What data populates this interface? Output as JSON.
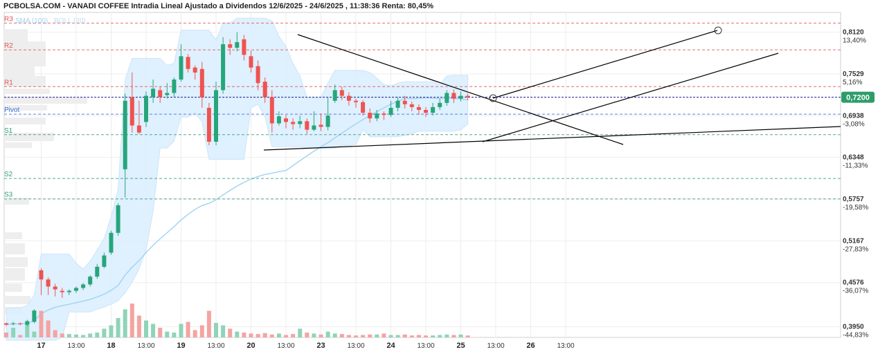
{
  "title": "PCBOLSA.COM - VANADI COFFEE Intradia Lineal Ajustado a Dividendos 12/6/2025 - 24/6/2025 , 11:38:36 Renta: 80,45%",
  "legend": {
    "sma": "SMA (100)",
    "boll": "BOLL (20)"
  },
  "colors": {
    "up": "#26a67a",
    "down": "#ef5350",
    "volume_up": "#8fd4b8",
    "volume_down": "#f5a3a1",
    "resistance": "#e05555",
    "pivot": "#3b6fd8",
    "support": "#2e9c7a",
    "band": "#dcefff",
    "sma": "#9fd3f0",
    "price_line": "#1c1c8c",
    "price_badge": "#2e9c6a"
  },
  "chart_data": {
    "type": "candlestick",
    "y_range": [
      0.38,
      0.84
    ],
    "levels": [
      {
        "name": "R3",
        "value": 0.825,
        "kind": "resistance"
      },
      {
        "name": "R2",
        "value": 0.787,
        "kind": "resistance"
      },
      {
        "name": "R1",
        "value": 0.735,
        "kind": "resistance"
      },
      {
        "name": "Pivot",
        "value": 0.696,
        "kind": "pivot"
      },
      {
        "name": "S1",
        "value": 0.667,
        "kind": "support"
      },
      {
        "name": "S2",
        "value": 0.605,
        "kind": "support"
      },
      {
        "name": "S3",
        "value": 0.576,
        "kind": "support"
      }
    ],
    "y_ticks": [
      {
        "value": "0,8120",
        "pct": "13,40%"
      },
      {
        "value": "0,7529",
        "pct": "5,16%"
      },
      {
        "value": "0,6938",
        "pct": "-3,08%"
      },
      {
        "value": "0,6348",
        "pct": "-11,33%"
      },
      {
        "value": "0,5757",
        "pct": "-19,58%"
      },
      {
        "value": "0,5167",
        "pct": "-27,83%"
      },
      {
        "value": "0,4576",
        "pct": "-36,07%"
      },
      {
        "value": "0,3950",
        "pct": "-44,83%"
      }
    ],
    "current_price": "0,7200",
    "x_ticks": [
      {
        "label": "17",
        "bold": true,
        "i": 5
      },
      {
        "label": "13:00",
        "bold": false,
        "i": 10
      },
      {
        "label": "18",
        "bold": true,
        "i": 15
      },
      {
        "label": "13:00",
        "bold": false,
        "i": 20
      },
      {
        "label": "19",
        "bold": true,
        "i": 25
      },
      {
        "label": "13:00",
        "bold": false,
        "i": 30
      },
      {
        "label": "20",
        "bold": true,
        "i": 35
      },
      {
        "label": "13:00",
        "bold": false,
        "i": 40
      },
      {
        "label": "23",
        "bold": true,
        "i": 45
      },
      {
        "label": "13:00",
        "bold": false,
        "i": 50
      },
      {
        "label": "24",
        "bold": true,
        "i": 55
      },
      {
        "label": "13:00",
        "bold": false,
        "i": 60
      },
      {
        "label": "25",
        "bold": true,
        "i": 65
      },
      {
        "label": "13:00",
        "bold": false,
        "i": 70
      },
      {
        "label": "26",
        "bold": true,
        "i": 75
      },
      {
        "label": "13:00",
        "bold": false,
        "i": 80
      }
    ],
    "candles": [
      [
        0.4,
        0.398,
        0.401,
        0.396
      ],
      [
        0.399,
        0.4,
        0.402,
        0.397
      ],
      [
        0.4,
        0.399,
        0.401,
        0.397
      ],
      [
        0.398,
        0.403,
        0.405,
        0.396
      ],
      [
        0.402,
        0.418,
        0.42,
        0.4
      ],
      [
        0.475,
        0.462,
        0.478,
        0.44
      ],
      [
        0.462,
        0.452,
        0.465,
        0.44
      ],
      [
        0.452,
        0.448,
        0.456,
        0.438
      ],
      [
        0.446,
        0.444,
        0.45,
        0.436
      ],
      [
        0.444,
        0.446,
        0.448,
        0.44
      ],
      [
        0.446,
        0.45,
        0.452,
        0.443
      ],
      [
        0.45,
        0.455,
        0.457,
        0.447
      ],
      [
        0.455,
        0.466,
        0.468,
        0.452
      ],
      [
        0.466,
        0.48,
        0.484,
        0.463
      ],
      [
        0.48,
        0.496,
        0.5,
        0.478
      ],
      [
        0.5,
        0.528,
        0.531,
        0.497
      ],
      [
        0.528,
        0.567,
        0.57,
        0.524
      ],
      [
        0.618,
        0.715,
        0.725,
        0.578
      ],
      [
        0.72,
        0.68,
        0.755,
        0.67
      ],
      [
        0.68,
        0.67,
        0.715,
        0.668
      ],
      [
        0.685,
        0.722,
        0.728,
        0.678
      ],
      [
        0.72,
        0.732,
        0.745,
        0.712
      ],
      [
        0.73,
        0.72,
        0.735,
        0.712
      ],
      [
        0.723,
        0.726,
        0.74,
        0.718
      ],
      [
        0.726,
        0.745,
        0.748,
        0.72
      ],
      [
        0.745,
        0.778,
        0.795,
        0.742
      ],
      [
        0.777,
        0.76,
        0.781,
        0.755
      ],
      [
        0.762,
        0.755,
        0.765,
        0.745
      ],
      [
        0.76,
        0.72,
        0.77,
        0.705
      ],
      [
        0.705,
        0.657,
        0.712,
        0.652
      ],
      [
        0.657,
        0.73,
        0.742,
        0.652
      ],
      [
        0.73,
        0.795,
        0.805,
        0.725
      ],
      [
        0.795,
        0.79,
        0.802,
        0.78
      ],
      [
        0.79,
        0.798,
        0.812,
        0.785
      ],
      [
        0.802,
        0.78,
        0.808,
        0.772
      ],
      [
        0.778,
        0.762,
        0.786,
        0.755
      ],
      [
        0.764,
        0.74,
        0.772,
        0.73
      ],
      [
        0.742,
        0.72,
        0.748,
        0.712
      ],
      [
        0.72,
        0.683,
        0.73,
        0.67
      ],
      [
        0.683,
        0.693,
        0.7,
        0.68
      ],
      [
        0.69,
        0.685,
        0.695,
        0.676
      ],
      [
        0.685,
        0.682,
        0.69,
        0.674
      ],
      [
        0.682,
        0.686,
        0.694,
        0.676
      ],
      [
        0.686,
        0.674,
        0.69,
        0.668
      ],
      [
        0.674,
        0.68,
        0.7,
        0.672
      ],
      [
        0.681,
        0.678,
        0.697,
        0.672
      ],
      [
        0.678,
        0.694,
        0.72,
        0.673
      ],
      [
        0.715,
        0.73,
        0.738,
        0.712
      ],
      [
        0.73,
        0.722,
        0.735,
        0.716
      ],
      [
        0.722,
        0.715,
        0.727,
        0.708
      ],
      [
        0.715,
        0.713,
        0.718,
        0.705
      ],
      [
        0.713,
        0.698,
        0.716,
        0.694
      ],
      [
        0.698,
        0.69,
        0.704,
        0.684
      ],
      [
        0.69,
        0.697,
        0.702,
        0.686
      ],
      [
        0.697,
        0.695,
        0.7,
        0.688
      ],
      [
        0.695,
        0.705,
        0.715,
        0.692
      ],
      [
        0.705,
        0.715,
        0.72,
        0.7
      ],
      [
        0.715,
        0.71,
        0.722,
        0.704
      ],
      [
        0.71,
        0.706,
        0.714,
        0.7
      ],
      [
        0.706,
        0.702,
        0.71,
        0.695
      ],
      [
        0.702,
        0.698,
        0.706,
        0.692
      ],
      [
        0.698,
        0.706,
        0.712,
        0.694
      ],
      [
        0.706,
        0.712,
        0.718,
        0.702
      ],
      [
        0.712,
        0.726,
        0.73,
        0.708
      ],
      [
        0.726,
        0.718,
        0.731,
        0.712
      ],
      [
        0.718,
        0.722,
        0.728,
        0.714
      ],
      [
        0.722,
        0.72,
        0.725,
        0.716
      ]
    ],
    "volumes": [
      0.1,
      0.2,
      0.05,
      0.3,
      0.12,
      0.55,
      0.35,
      0.15,
      0.08,
      0.07,
      0.06,
      0.05,
      0.08,
      0.1,
      0.18,
      0.25,
      0.4,
      0.58,
      0.7,
      0.45,
      0.35,
      0.28,
      0.2,
      0.12,
      0.1,
      0.28,
      0.32,
      0.15,
      0.25,
      0.55,
      0.3,
      0.25,
      0.18,
      0.12,
      0.1,
      0.08,
      0.07,
      0.09,
      0.06,
      0.08,
      0.05,
      0.07,
      0.18,
      0.1,
      0.08,
      0.06,
      0.12,
      0.08,
      0.07,
      0.05,
      0.04,
      0.05,
      0.06,
      0.06,
      0.08,
      0.05,
      0.05,
      0.06,
      0.04,
      0.05,
      0.04,
      0.04,
      0.05,
      0.06,
      0.05,
      0.06,
      0.04
    ]
  }
}
